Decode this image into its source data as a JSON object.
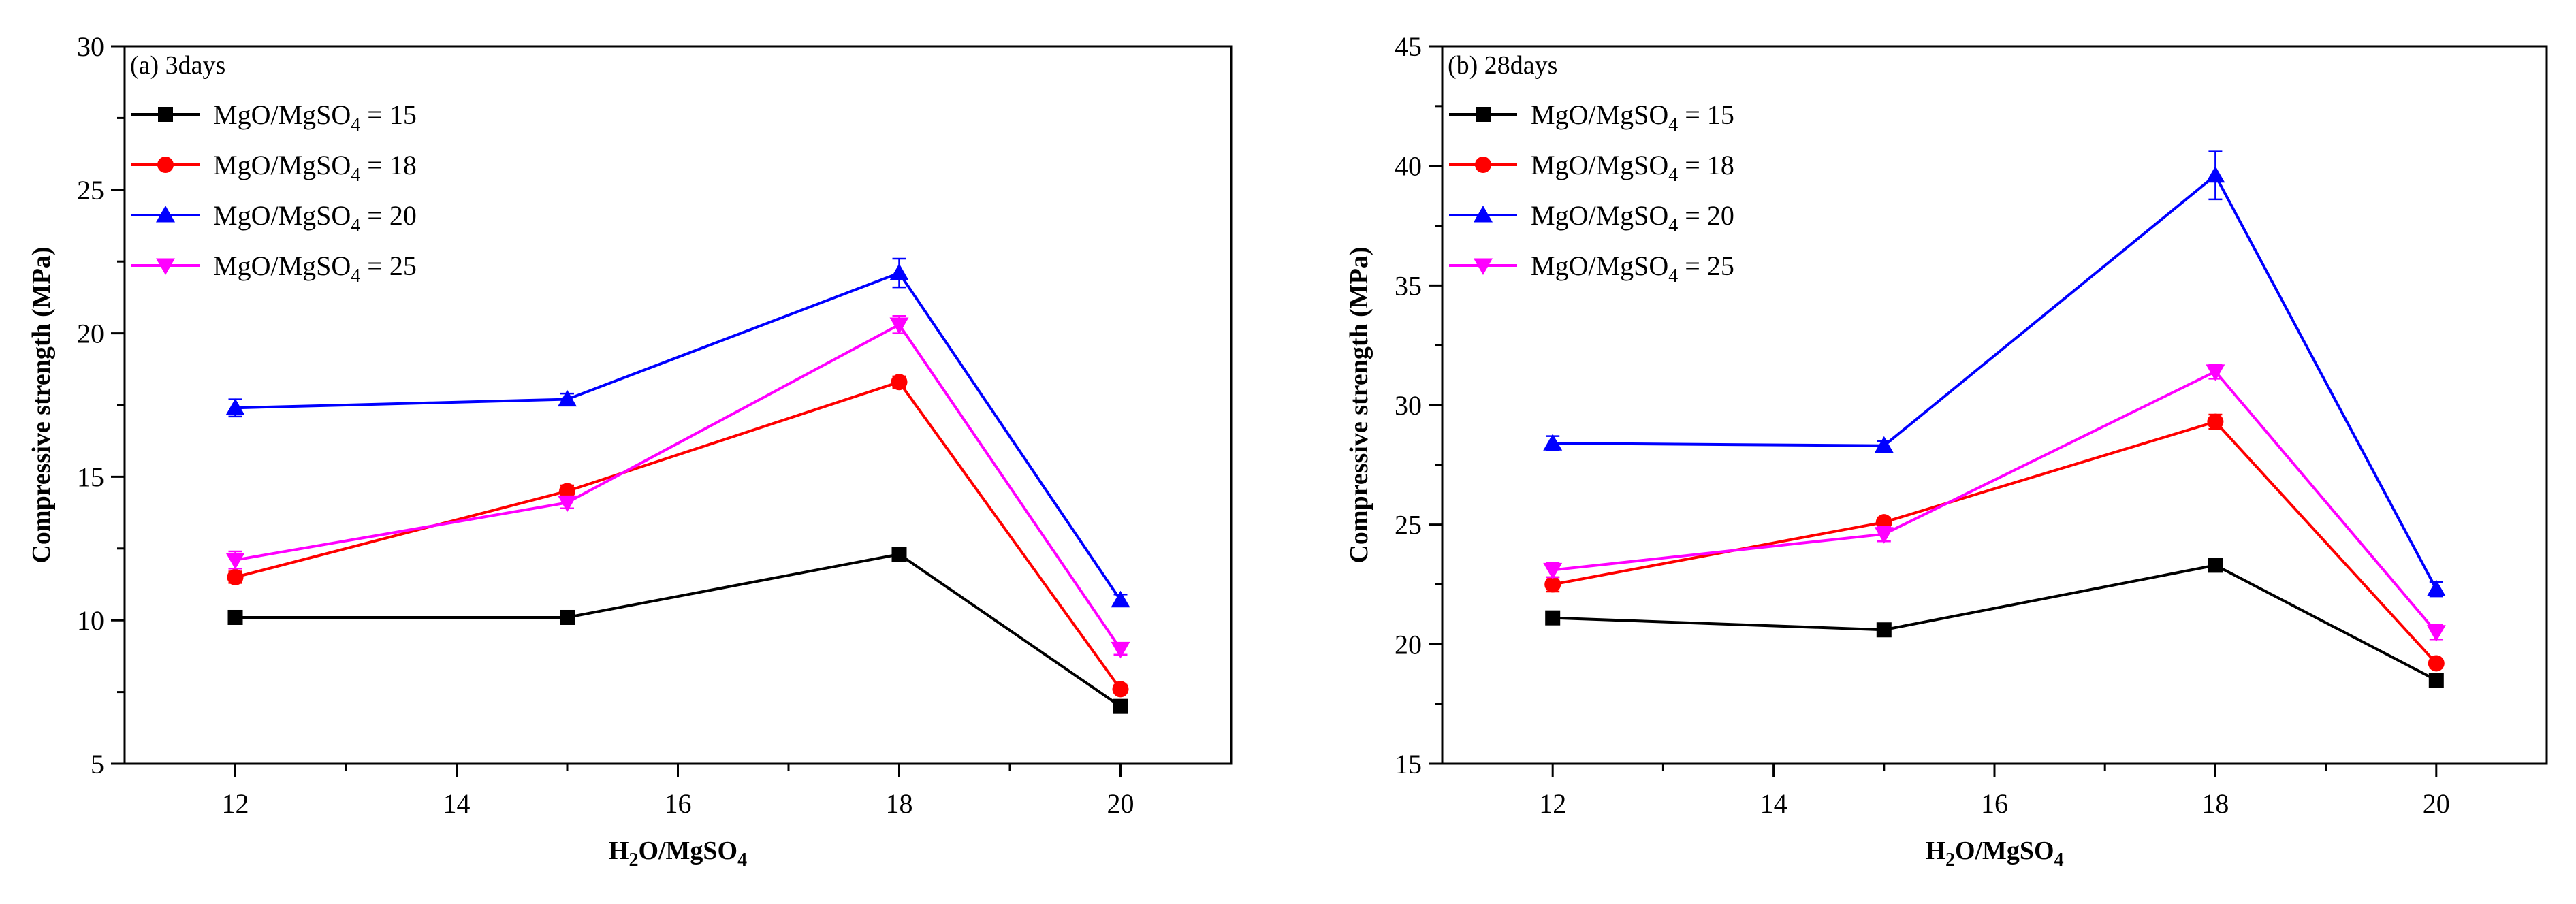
{
  "chart_data": [
    {
      "type": "line",
      "panel_label": "(a) 3days",
      "xlabel": {
        "base": "H",
        "sub1": "2",
        "mid": "O/MgSO",
        "sub2": "4"
      },
      "ylabel": "Compressive strength (MPa)",
      "xlim": [
        11,
        21
      ],
      "ylim": [
        5,
        30
      ],
      "xticks": [
        12,
        14,
        16,
        18,
        20
      ],
      "yticks": [
        5,
        10,
        15,
        20,
        25,
        30
      ],
      "x": [
        12,
        15,
        18,
        20
      ],
      "legend_position": "top-left",
      "series": [
        {
          "name": "MgO/MgSO4 = 15",
          "legend": {
            "main": "MgO/MgSO",
            "sub": "4",
            "rest": " = 15"
          },
          "color": "#000000",
          "marker": "square",
          "values": [
            10.1,
            10.1,
            12.3,
            7.0
          ],
          "errors": [
            0.15,
            0.15,
            0.2,
            0.15
          ]
        },
        {
          "name": "MgO/MgSO4 = 18",
          "legend": {
            "main": "MgO/MgSO",
            "sub": "4",
            "rest": " = 18"
          },
          "color": "#ff0000",
          "marker": "circle",
          "values": [
            11.5,
            14.5,
            18.3,
            7.6
          ],
          "errors": [
            0.2,
            0.2,
            0.2,
            0.15
          ]
        },
        {
          "name": "MgO/MgSO4 = 20",
          "legend": {
            "main": "MgO/MgSO",
            "sub": "4",
            "rest": " = 20"
          },
          "color": "#0000ff",
          "marker": "triangle-up",
          "values": [
            17.4,
            17.7,
            22.1,
            10.7
          ],
          "errors": [
            0.3,
            0.2,
            0.5,
            0.2
          ]
        },
        {
          "name": "MgO/MgSO4 = 25",
          "legend": {
            "main": "MgO/MgSO",
            "sub": "4",
            "rest": " = 25"
          },
          "color": "#ff00ff",
          "marker": "triangle-down",
          "values": [
            12.1,
            14.1,
            20.3,
            9.0
          ],
          "errors": [
            0.3,
            0.2,
            0.3,
            0.2
          ]
        }
      ]
    },
    {
      "type": "line",
      "panel_label": "(b) 28days",
      "xlabel": {
        "base": "H",
        "sub1": "2",
        "mid": "O/MgSO",
        "sub2": "4"
      },
      "ylabel": "Compressive strength (MPa)",
      "xlim": [
        11,
        21
      ],
      "ylim": [
        15,
        45
      ],
      "xticks": [
        12,
        14,
        16,
        18,
        20
      ],
      "yticks": [
        15,
        20,
        25,
        30,
        35,
        40,
        45
      ],
      "x": [
        12,
        15,
        18,
        20
      ],
      "legend_position": "top-left",
      "series": [
        {
          "name": "MgO/MgSO4 = 15",
          "legend": {
            "main": "MgO/MgSO",
            "sub": "4",
            "rest": " = 15"
          },
          "color": "#000000",
          "marker": "square",
          "values": [
            21.1,
            20.6,
            23.3,
            18.5
          ],
          "errors": [
            0.2,
            0.2,
            0.2,
            0.2
          ]
        },
        {
          "name": "MgO/MgSO4 = 18",
          "legend": {
            "main": "MgO/MgSO",
            "sub": "4",
            "rest": " = 18"
          },
          "color": "#ff0000",
          "marker": "circle",
          "values": [
            22.5,
            25.1,
            29.3,
            19.2
          ],
          "errors": [
            0.3,
            0.2,
            0.3,
            0.2
          ]
        },
        {
          "name": "MgO/MgSO4 = 20",
          "legend": {
            "main": "MgO/MgSO",
            "sub": "4",
            "rest": " = 20"
          },
          "color": "#0000ff",
          "marker": "triangle-up",
          "values": [
            28.4,
            28.3,
            39.6,
            22.3
          ],
          "errors": [
            0.3,
            0.2,
            1.0,
            0.3
          ]
        },
        {
          "name": "MgO/MgSO4 = 25",
          "legend": {
            "main": "MgO/MgSO",
            "sub": "4",
            "rest": " = 25"
          },
          "color": "#ff00ff",
          "marker": "triangle-down",
          "values": [
            23.1,
            24.6,
            31.4,
            20.5
          ],
          "errors": [
            0.3,
            0.3,
            0.3,
            0.3
          ]
        }
      ]
    }
  ]
}
